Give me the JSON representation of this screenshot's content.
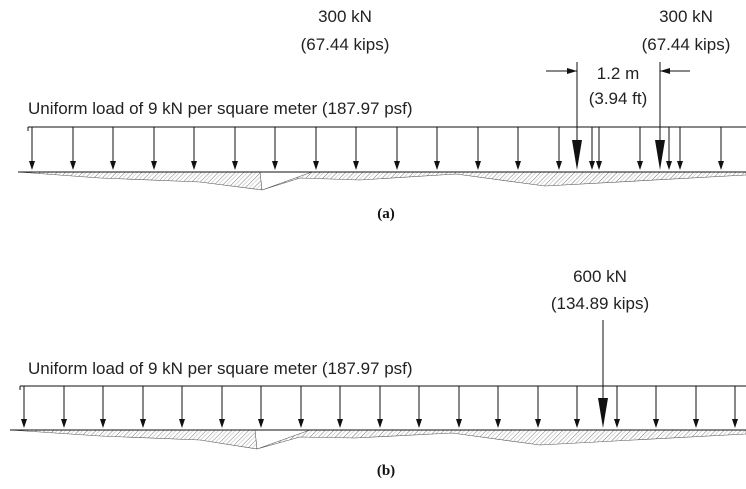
{
  "panel_a": {
    "uniform_label": "Uniform load of 9 kN per square meter (187.97 psf)",
    "point_load_1": {
      "kn": "300 kN",
      "kips": "(67.44 kips)"
    },
    "point_load_2": {
      "kn": "300 kN",
      "kips": "(67.44 kips)"
    },
    "spacing": {
      "m": "1.2 m",
      "ft": "(3.94 ft)"
    },
    "caption": "(a)"
  },
  "panel_b": {
    "uniform_label": "Uniform load of 9 kN per square meter (187.97 psf)",
    "point_load": {
      "kn": "600 kN",
      "kips": "(134.89 kips)"
    },
    "caption": "(b)"
  }
}
